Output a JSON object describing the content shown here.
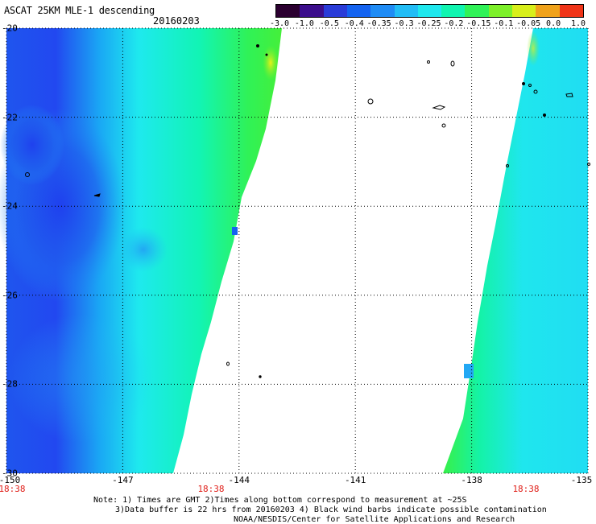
{
  "header": {
    "title": "ASCAT 25KM MLE-1 descending",
    "date": "20160203"
  },
  "colorbar": {
    "labels": [
      "-3.0",
      "-1.0",
      "-0.5",
      "-0.4",
      "-0.35",
      "-0.3",
      "-0.25",
      "-0.2",
      "-0.15",
      "-0.1",
      "-0.05",
      "0.0",
      "1.0"
    ],
    "colors": [
      "#2b0030",
      "#3c0e8c",
      "#2a3cd8",
      "#1463f0",
      "#1f8cf5",
      "#22bdf6",
      "#1fe8ee",
      "#10f5b0",
      "#30f258",
      "#7df02a",
      "#d8ef1a",
      "#f0a21a",
      "#f03418"
    ]
  },
  "axes": {
    "lat_labels": [
      "-20",
      "-22",
      "-24",
      "-26",
      "-28",
      "-30"
    ],
    "lon_labels": [
      "-150",
      "-147",
      "-144",
      "-141",
      "-138",
      "-135"
    ],
    "time_labels": [
      "18:38",
      "18:38",
      "18:38"
    ]
  },
  "swaths": {
    "west": {
      "value_range": [
        -0.45,
        -0.1
      ]
    },
    "east": {
      "value_range": [
        -0.3,
        -0.05
      ]
    }
  },
  "notes": {
    "line1": "Note: 1) Times are GMT 2)Times along bottom correspond to measurement at ~25S",
    "line2": "3)Data buffer is 22 hrs from 20160203 4) Black wind barbs indicate possible contamination",
    "line3": "NOAA/NESDIS/Center for Satellite Applications and Research"
  }
}
